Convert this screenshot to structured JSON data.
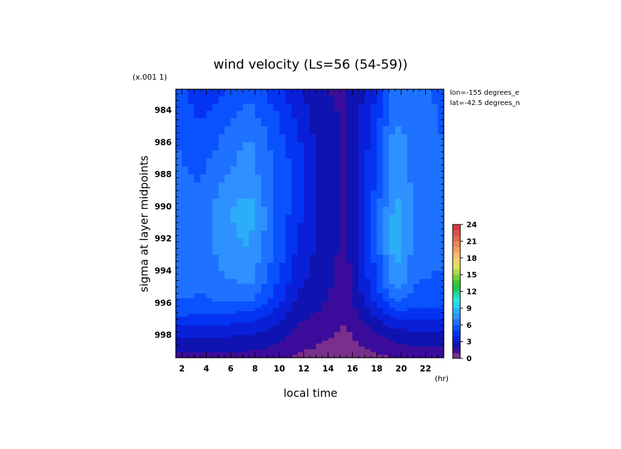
{
  "chart_data": {
    "type": "heatmap",
    "title": "wind velocity (Ls=56 (54-59))",
    "xlabel": "local time",
    "ylabel": "sigma at layer midpoints",
    "x_unit": "(hr)",
    "y_scale_note": "(x.001 1)",
    "annotations": [
      "lon=-155 degrees_e",
      "lat=-42.5 degrees_n"
    ],
    "xlim": [
      1.5,
      23.5
    ],
    "ylim_scaled": [
      982.7,
      999.4
    ],
    "x_ticks": [
      "2",
      "4",
      "6",
      "8",
      "10",
      "12",
      "14",
      "16",
      "18",
      "20",
      "22"
    ],
    "x_tick_values": [
      2,
      4,
      6,
      8,
      10,
      12,
      14,
      16,
      18,
      20,
      22
    ],
    "y_ticks": [
      "984",
      "986",
      "988",
      "990",
      "992",
      "994",
      "996",
      "998"
    ],
    "y_tick_values": [
      984,
      986,
      988,
      990,
      992,
      994,
      996,
      998
    ],
    "x": [
      1.5,
      3.5,
      5.5,
      7.5,
      9.5,
      11.5,
      13.5,
      15.5,
      17.5,
      19.5,
      21.5,
      23.5
    ],
    "y": [
      982.7,
      984.5,
      986.5,
      988.5,
      990.5,
      992.5,
      994.5,
      995.7,
      996.5,
      997.2,
      998.0,
      998.7,
      999.4
    ],
    "z": [
      [
        5.6,
        4.2,
        4.9,
        5.6,
        4.5,
        3.3,
        2.0,
        1.8,
        3.4,
        6.3,
        6.2,
        5.7
      ],
      [
        5.9,
        4.8,
        5.8,
        6.5,
        5.4,
        3.8,
        2.3,
        1.9,
        3.9,
        6.9,
        6.4,
        5.9
      ],
      [
        6.1,
        5.5,
        6.3,
        7.4,
        5.8,
        4.4,
        2.5,
        1.9,
        4.3,
        7.8,
        6.3,
        6.0
      ],
      [
        6.3,
        6.0,
        7.2,
        7.7,
        6.0,
        4.6,
        2.7,
        1.9,
        4.4,
        8.0,
        6.4,
        6.1
      ],
      [
        6.4,
        6.1,
        7.8,
        8.7,
        6.2,
        4.3,
        2.8,
        1.8,
        4.8,
        8.5,
        6.4,
        6.5
      ],
      [
        6.5,
        6.2,
        7.6,
        8.0,
        6.1,
        3.8,
        2.6,
        1.7,
        4.6,
        8.6,
        6.3,
        6.3
      ],
      [
        6.4,
        6.2,
        6.9,
        7.4,
        5.5,
        3.3,
        2.4,
        1.6,
        4.4,
        7.9,
        6.0,
        5.9
      ],
      [
        6.1,
        5.9,
        6.3,
        6.4,
        4.8,
        2.9,
        2.2,
        1.4,
        3.8,
        6.3,
        5.5,
        5.5
      ],
      [
        5.5,
        5.3,
        5.2,
        5.0,
        4.0,
        2.5,
        1.9,
        1.2,
        3.1,
        4.9,
        4.8,
        4.7
      ],
      [
        4.4,
        4.3,
        4.2,
        4.0,
        3.3,
        2.1,
        1.6,
        1.0,
        2.4,
        3.6,
        3.8,
        3.7
      ],
      [
        3.2,
        3.2,
        3.1,
        3.0,
        2.5,
        1.7,
        1.2,
        0.8,
        1.7,
        2.5,
        2.7,
        2.7
      ],
      [
        2.5,
        2.6,
        2.6,
        2.4,
        2.0,
        1.3,
        0.9,
        0.6,
        1.2,
        1.8,
        2.0,
        2.0
      ],
      [
        1.4,
        1.5,
        1.5,
        1.4,
        1.2,
        0.8,
        0.6,
        0.4,
        0.7,
        1.0,
        1.1,
        1.1
      ]
    ],
    "colorbar": {
      "ticks": [
        "0",
        "3",
        "6",
        "9",
        "12",
        "15",
        "18",
        "21",
        "24"
      ],
      "min": 0,
      "max": 24,
      "step": 1,
      "colors": [
        "#7a2f8c",
        "#3b0c9b",
        "#0f13b0",
        "#0a1fd8",
        "#0433f2",
        "#0b52ff",
        "#1e72ff",
        "#2f90ff",
        "#2aaef8",
        "#27d4f2",
        "#24e6d6",
        "#20d7a3",
        "#1fca55",
        "#33c82e",
        "#76cf3b",
        "#b2d84a",
        "#e0e25a",
        "#f2d266",
        "#f6bb6a",
        "#f0a15f",
        "#e98456",
        "#e36a4e",
        "#dc4f47",
        "#d43a3f"
      ]
    }
  }
}
